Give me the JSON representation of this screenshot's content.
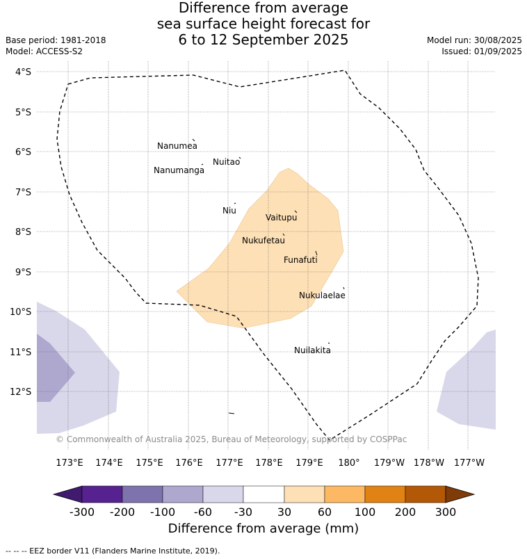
{
  "title": {
    "line1": "Difference from average",
    "line2": "sea surface height forecast for",
    "line3": "6 to 12 September 2025"
  },
  "meta": {
    "base_period": "Base period: 1981-2018",
    "model": "Model: ACCESS-S2",
    "model_run": "Model run: 30/08/2025",
    "issued": "Issued: 01/09/2025"
  },
  "lat_labels": [
    "4°S",
    "5°S",
    "6°S",
    "7°S",
    "8°S",
    "9°S",
    "10°S",
    "11°S",
    "12°S"
  ],
  "lon_labels": [
    "173°E",
    "174°E",
    "175°E",
    "176°E",
    "177°E",
    "178°E",
    "179°E",
    "180°",
    "179°W",
    "178°W",
    "177°W"
  ],
  "islands": [
    "Nanumea",
    "Nuitao",
    "Nanumanga",
    "Niu",
    "Vaitupu",
    "Nukufetau",
    "Funafuti",
    "Nukulaelae",
    "Nuilakita"
  ],
  "copyright": "© Commonwealth of Australia 2025, Bureau of Meteorology, supported by COSPPac",
  "colorbar": {
    "ticks": [
      "-300",
      "-200",
      "-100",
      "-60",
      "-30",
      "30",
      "60",
      "100",
      "200",
      "300"
    ],
    "colors": [
      "#3f1a6e",
      "#56228f",
      "#7f73ad",
      "#aea8cf",
      "#d8d8ea",
      "#ffffff",
      "#fde0b6",
      "#fdb863",
      "#e08214",
      "#b35806",
      "#7f3b08"
    ],
    "label": "Difference from average (mm)"
  },
  "footnote": "--  --  -- EEZ border V11 (Flanders Marine Institute, 2019)."
}
